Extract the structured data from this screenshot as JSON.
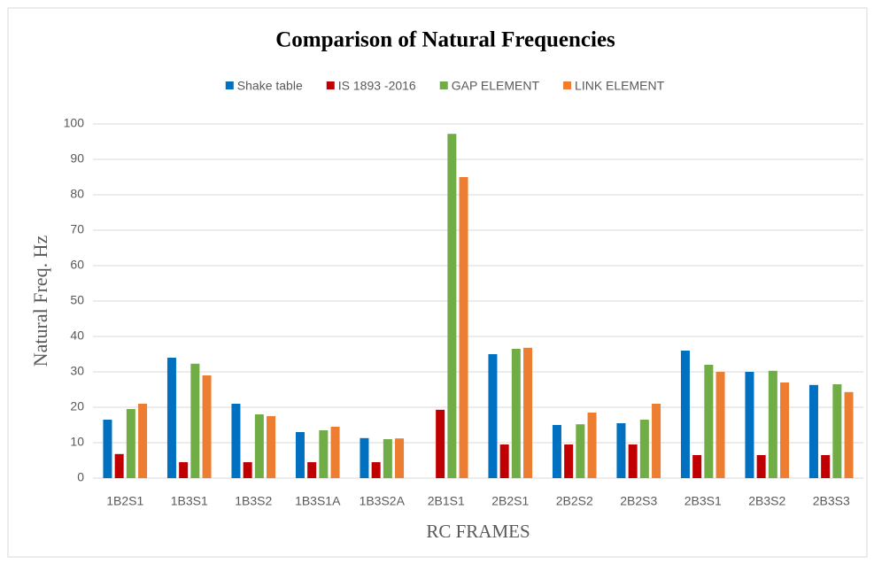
{
  "chart_data": {
    "type": "bar",
    "title": "Comparison of Natural Frequencies",
    "x_label": "RC FRAMES",
    "y_label": "Natural Freq. Hz",
    "categories": [
      "1B2S1",
      "1B3S1",
      "1B3S2",
      "1B3S1A",
      "1B3S2A",
      "2B1S1",
      "2B2S1",
      "2B2S2",
      "2B2S3",
      "2B3S1",
      "2B3S2",
      "2B3S3"
    ],
    "series": [
      {
        "name": "Shake table",
        "color": "#0070c0",
        "values": [
          16.5,
          34,
          21,
          13,
          11.3,
          null,
          35,
          15,
          15.5,
          36,
          30,
          26.3
        ]
      },
      {
        "name": "IS 1893 -2016",
        "color": "#c00000",
        "values": [
          6.8,
          4.5,
          4.5,
          4.5,
          4.5,
          19.3,
          9.5,
          9.5,
          9.5,
          6.5,
          6.5,
          6.5
        ]
      },
      {
        "name": "GAP ELEMENT",
        "color": "#70ad47",
        "values": [
          19.5,
          32.3,
          18,
          13.5,
          11,
          97.2,
          36.5,
          15.2,
          16.5,
          32,
          30.3,
          26.5
        ]
      },
      {
        "name": "LINK ELEMENT",
        "color": "#ed7d31",
        "values": [
          21,
          29,
          17.5,
          14.5,
          11.2,
          85,
          36.8,
          18.5,
          21,
          30,
          27,
          24.3
        ]
      }
    ],
    "ylim": [
      0,
      100
    ],
    "yticks": [
      0,
      10,
      20,
      30,
      40,
      50,
      60,
      70,
      80,
      90,
      100
    ],
    "grid": true,
    "legend": "top"
  }
}
